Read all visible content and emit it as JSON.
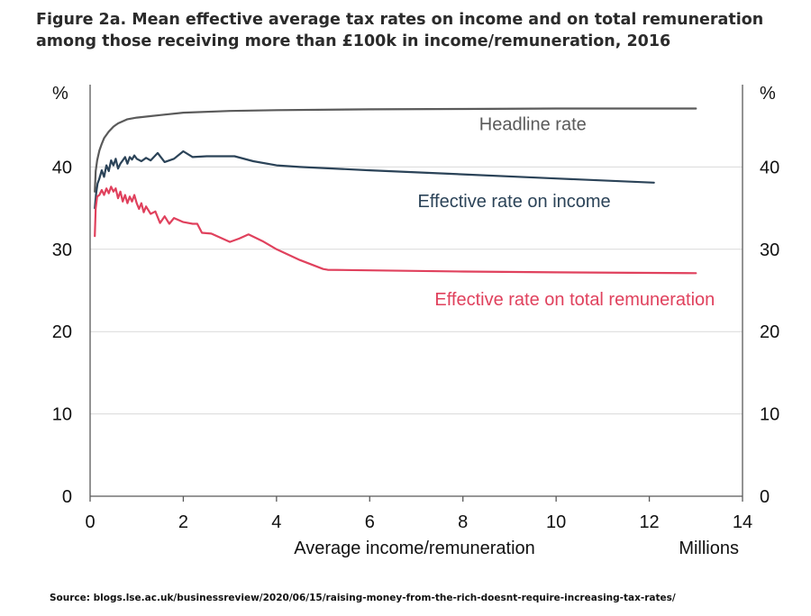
{
  "title": "Figure 2a. Mean effective average tax rates on income and on total remuneration among those receiving more than £100k in income/remuneration, 2016",
  "source": "Source: blogs.lse.ac.uk/businessreview/2020/06/15/raising-money-from-the-rich-doesnt-require-increasing-tax-rates/",
  "chart_data": {
    "type": "line",
    "title": "Figure 2a. Mean effective average tax rates on income and on total remuneration among those receiving more than £100k in income/remuneration, 2016",
    "xlabel": "Average income/remuneration",
    "x_unit_label": "Millions",
    "ylabel_left": "%",
    "ylabel_right": "%",
    "xlim": [
      0,
      14
    ],
    "ylim": [
      0,
      50
    ],
    "x_ticks": [
      0,
      2,
      4,
      6,
      8,
      10,
      12,
      14
    ],
    "y_ticks": [
      0,
      10,
      20,
      30,
      40
    ],
    "grid": true,
    "series": [
      {
        "name": "Headline rate",
        "color": "#5a5a5a",
        "points": [
          [
            0.1,
            37
          ],
          [
            0.12,
            39.5
          ],
          [
            0.15,
            40.8
          ],
          [
            0.2,
            42
          ],
          [
            0.25,
            42.8
          ],
          [
            0.3,
            43.5
          ],
          [
            0.4,
            44.3
          ],
          [
            0.5,
            44.9
          ],
          [
            0.6,
            45.3
          ],
          [
            0.8,
            45.8
          ],
          [
            1.0,
            46.0
          ],
          [
            1.5,
            46.3
          ],
          [
            2.0,
            46.6
          ],
          [
            3.0,
            46.8
          ],
          [
            4.0,
            46.9
          ],
          [
            6.0,
            47.0
          ],
          [
            8.0,
            47.05
          ],
          [
            10.0,
            47.1
          ],
          [
            12.0,
            47.1
          ],
          [
            13.0,
            47.1
          ]
        ]
      },
      {
        "name": "Effective rate on income",
        "color": "#2b4358",
        "points": [
          [
            0.1,
            35
          ],
          [
            0.13,
            36.8
          ],
          [
            0.16,
            38
          ],
          [
            0.2,
            38.6
          ],
          [
            0.25,
            39.6
          ],
          [
            0.3,
            38.8
          ],
          [
            0.35,
            40.2
          ],
          [
            0.4,
            39.5
          ],
          [
            0.45,
            40.8
          ],
          [
            0.5,
            40.2
          ],
          [
            0.55,
            41
          ],
          [
            0.6,
            39.8
          ],
          [
            0.65,
            40.4
          ],
          [
            0.7,
            40.8
          ],
          [
            0.75,
            41.2
          ],
          [
            0.8,
            40.4
          ],
          [
            0.85,
            41.2
          ],
          [
            0.9,
            40.9
          ],
          [
            0.95,
            41.4
          ],
          [
            1.0,
            41
          ],
          [
            1.1,
            40.7
          ],
          [
            1.2,
            41.1
          ],
          [
            1.3,
            40.8
          ],
          [
            1.45,
            41.7
          ],
          [
            1.6,
            40.6
          ],
          [
            1.8,
            41
          ],
          [
            2.0,
            41.9
          ],
          [
            2.2,
            41.2
          ],
          [
            2.5,
            41.3
          ],
          [
            2.8,
            41.3
          ],
          [
            3.1,
            41.3
          ],
          [
            3.5,
            40.7
          ],
          [
            4.0,
            40.2
          ],
          [
            4.5,
            40.0
          ],
          [
            6.0,
            39.6
          ],
          [
            8.0,
            39.1
          ],
          [
            10.0,
            38.6
          ],
          [
            12.1,
            38.1
          ]
        ]
      },
      {
        "name": "Effective rate on total remuneration",
        "color": "#e0415d",
        "points": [
          [
            0.1,
            31.6
          ],
          [
            0.12,
            35
          ],
          [
            0.15,
            36.4
          ],
          [
            0.2,
            36.6
          ],
          [
            0.25,
            37.2
          ],
          [
            0.3,
            36.6
          ],
          [
            0.35,
            37.4
          ],
          [
            0.4,
            36.8
          ],
          [
            0.45,
            37.6
          ],
          [
            0.5,
            37.0
          ],
          [
            0.55,
            37.4
          ],
          [
            0.6,
            36.2
          ],
          [
            0.65,
            37.0
          ],
          [
            0.7,
            35.8
          ],
          [
            0.75,
            36.6
          ],
          [
            0.8,
            35.6
          ],
          [
            0.85,
            36.4
          ],
          [
            0.9,
            35.8
          ],
          [
            0.95,
            36.6
          ],
          [
            1.0,
            35.6
          ],
          [
            1.05,
            34.9
          ],
          [
            1.1,
            35.6
          ],
          [
            1.15,
            34.5
          ],
          [
            1.2,
            35.2
          ],
          [
            1.3,
            34.3
          ],
          [
            1.4,
            34.6
          ],
          [
            1.5,
            33.2
          ],
          [
            1.6,
            34
          ],
          [
            1.7,
            33.1
          ],
          [
            1.8,
            33.8
          ],
          [
            2.0,
            33.3
          ],
          [
            2.2,
            33.1
          ],
          [
            2.3,
            33.1
          ],
          [
            2.4,
            32.0
          ],
          [
            2.6,
            31.9
          ],
          [
            2.8,
            31.4
          ],
          [
            3.0,
            30.9
          ],
          [
            3.2,
            31.3
          ],
          [
            3.4,
            31.8
          ],
          [
            3.7,
            31.0
          ],
          [
            4.0,
            30.0
          ],
          [
            4.5,
            28.7
          ],
          [
            5.0,
            27.6
          ],
          [
            5.1,
            27.5
          ],
          [
            8.0,
            27.3
          ],
          [
            10.0,
            27.2
          ],
          [
            13.0,
            27.1
          ]
        ]
      }
    ],
    "annotations": [
      {
        "text": "Headline rate",
        "series": "Headline rate",
        "x": 9.5,
        "y": 44.5
      },
      {
        "text": "Effective rate on income",
        "series": "Effective rate on income",
        "x": 9.1,
        "y": 35.1
      },
      {
        "text": "Effective rate on total remuneration",
        "series": "Effective rate on total remuneration",
        "x": 10.4,
        "y": 23.2
      }
    ]
  }
}
